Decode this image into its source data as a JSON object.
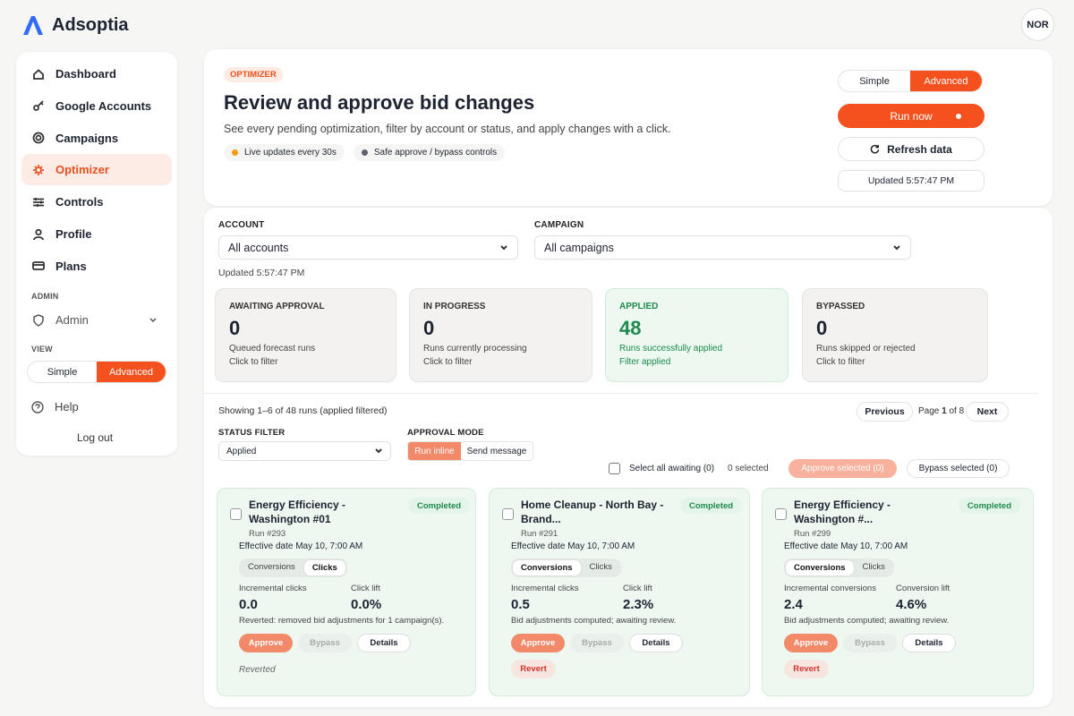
{
  "brand": "Adsoptia",
  "user": "NOR",
  "nav": {
    "items": [
      "Dashboard",
      "Google Accounts",
      "Campaigns",
      "Optimizer",
      "Controls",
      "Profile",
      "Plans"
    ],
    "active_item": 3,
    "admin_heading": "ADMIN",
    "admin": "Admin",
    "view_heading": "VIEW",
    "view_options": [
      "Simple",
      "Advanced"
    ],
    "help": "Help",
    "logout": "Log out"
  },
  "header": {
    "badge": "OPTIMIZER",
    "title": "Review and approve bid changes",
    "subtitle": "See every pending optimization, filter by account or status, and apply changes with a click.",
    "chips": [
      "Live updates every 30s",
      "Safe approve / bypass controls"
    ],
    "mode_options": [
      "Simple",
      "Advanced"
    ],
    "run": "Run now",
    "refresh": "Refresh data",
    "updated": "Updated 5:57:47 PM"
  },
  "filters": {
    "account_label": "ACCOUNT",
    "account": "All accounts",
    "campaign_label": "CAMPAIGN",
    "campaign": "All campaigns",
    "updated": "Updated 5:57:47 PM"
  },
  "stats": [
    {
      "label": "AWAITING APPROVAL",
      "value": 0,
      "desc": "Queued forecast runs",
      "action": "Click to filter"
    },
    {
      "label": "IN PROGRESS",
      "value": 0,
      "desc": "Runs currently processing",
      "action": "Click to filter"
    },
    {
      "label": "APPLIED",
      "value": 48,
      "desc": "Runs successfully applied",
      "action": "Filter applied",
      "active": true
    },
    {
      "label": "BYPASSED",
      "value": 0,
      "desc": "Runs skipped or rejected",
      "action": "Click to filter"
    }
  ],
  "runs": {
    "showing": "Showing 1–6 of 48 runs",
    "showing_note": "(applied filtered)",
    "previous": "Previous",
    "page_prefix": "Page",
    "page": 1,
    "page_of": "of",
    "pages": 8,
    "next": "Next",
    "status_label": "STATUS FILTER",
    "status": "Applied",
    "mode_label": "APPROVAL MODE",
    "modes": [
      "Run inline",
      "Send message"
    ],
    "select_all": "Select all awaiting (0)",
    "selected": "0 selected",
    "approve_selected": "Approve selected (0)",
    "bypass_selected": "Bypass selected (0)"
  },
  "cards": [
    {
      "title": "Energy Efficiency - Washington #01",
      "status": "Completed",
      "run": "Run #293",
      "date": "Effective date May 10, 7:00 AM",
      "tabs": [
        "Conversions",
        "Clicks"
      ],
      "active_tab": 1,
      "metric_label": "Incremental clicks",
      "metric_value": "0.0",
      "lift_label": "Click lift",
      "lift_value": "0.0%",
      "note": "Reverted: removed bid adjustments for 1 campaign(s).",
      "approve": "Approve",
      "bypass": "Bypass",
      "details": "Details",
      "reverted": "Reverted"
    },
    {
      "title": "Home Cleanup - North Bay - Brand...",
      "status": "Completed",
      "run": "Run #291",
      "date": "Effective date May 10, 7:00 AM",
      "tabs": [
        "Conversions",
        "Clicks"
      ],
      "active_tab": 0,
      "metric_label": "Incremental clicks",
      "metric_value": "0.5",
      "lift_label": "Click lift",
      "lift_value": "2.3%",
      "note": "Bid adjustments computed; awaiting review.",
      "approve": "Approve",
      "bypass": "Bypass",
      "details": "Details",
      "revert": "Revert"
    },
    {
      "title": "Energy Efficiency - Washington #...",
      "status": "Completed",
      "run": "Run #299",
      "date": "Effective date May 10, 7:00 AM",
      "tabs": [
        "Conversions",
        "Clicks"
      ],
      "active_tab": 0,
      "metric_label": "Incremental conversions",
      "metric_value": "2.4",
      "lift_label": "Conversion lift",
      "lift_value": "4.6%",
      "note": "Bid adjustments computed; awaiting review.",
      "approve": "Approve",
      "bypass": "Bypass",
      "details": "Details",
      "revert": "Revert"
    }
  ]
}
